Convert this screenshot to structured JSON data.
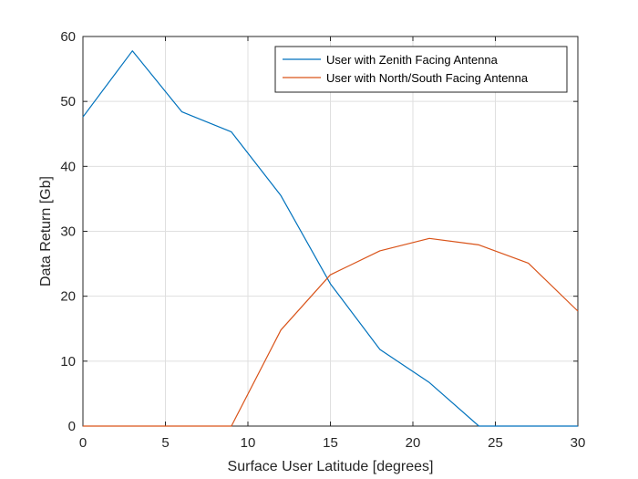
{
  "chart_data": {
    "type": "line",
    "title": "",
    "xlabel": "Surface User Latitude [degrees]",
    "ylabel": "Data Return [Gb]",
    "xlim": [
      0,
      30
    ],
    "ylim": [
      0,
      60
    ],
    "x_ticks": [
      0,
      5,
      10,
      15,
      20,
      25,
      30
    ],
    "y_ticks": [
      0,
      10,
      20,
      30,
      40,
      50,
      60
    ],
    "grid": true,
    "legend_position": "top-right",
    "x": [
      0,
      3,
      6,
      9,
      12,
      15,
      18,
      21,
      24,
      27,
      30
    ],
    "series": [
      {
        "name": "User with Zenith Facing Antenna",
        "color": "#0072BD",
        "values": [
          47.6,
          57.8,
          48.4,
          45.3,
          35.5,
          21.9,
          11.8,
          6.7,
          0,
          0,
          0
        ]
      },
      {
        "name": "User with North/South Facing Antenna",
        "color": "#D95319",
        "values": [
          0,
          0,
          0,
          0,
          14.8,
          23.3,
          27.0,
          28.9,
          27.9,
          25.1,
          17.7
        ]
      }
    ]
  }
}
